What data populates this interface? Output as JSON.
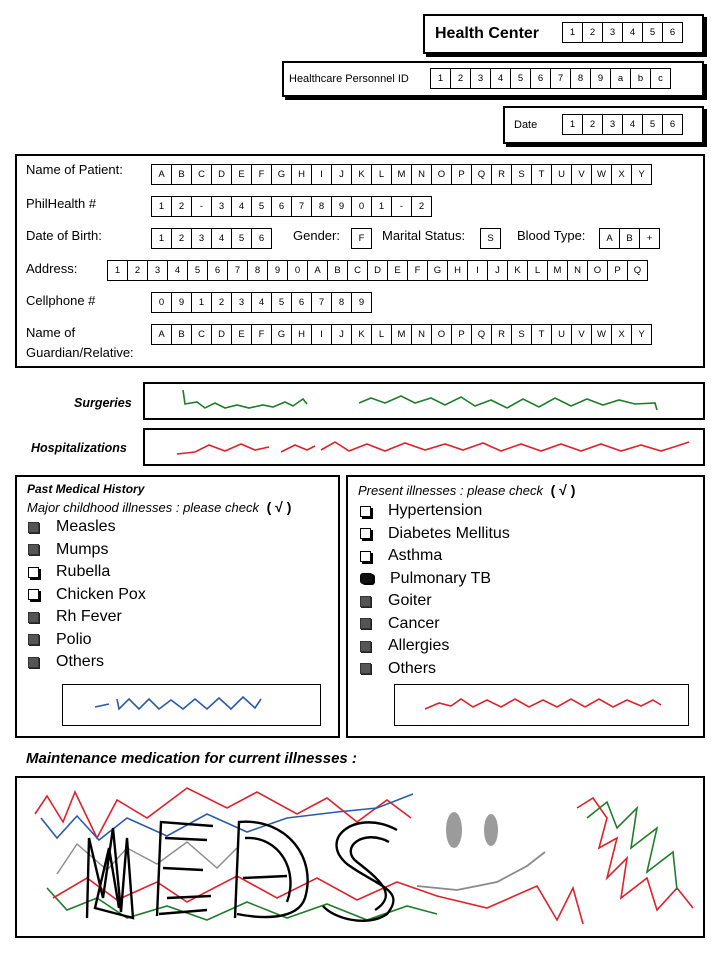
{
  "header": {
    "health_center": {
      "label": "Health Center",
      "cells": [
        "1",
        "2",
        "3",
        "4",
        "5",
        "6"
      ]
    },
    "personnel_id": {
      "label": "Healthcare Personnel ID",
      "cells": [
        "1",
        "2",
        "3",
        "4",
        "5",
        "6",
        "7",
        "8",
        "9",
        "a",
        "b",
        "c"
      ]
    },
    "date": {
      "label": "Date",
      "cells": [
        "1",
        "2",
        "3",
        "4",
        "5",
        "6"
      ]
    }
  },
  "patient": {
    "name": {
      "label": "Name of Patient:",
      "cells": [
        "A",
        "B",
        "C",
        "D",
        "E",
        "F",
        "G",
        "H",
        "I",
        "J",
        "K",
        "L",
        "M",
        "N",
        "O",
        "P",
        "Q",
        "R",
        "S",
        "T",
        "U",
        "V",
        "W",
        "X",
        "Y"
      ]
    },
    "philhealth": {
      "label": "PhilHealth  #",
      "cells": [
        "1",
        "2",
        "-",
        "3",
        "4",
        "5",
        "6",
        "7",
        "8",
        "9",
        "0",
        "1",
        "-",
        "2"
      ]
    },
    "dob": {
      "label": "Date of Birth:",
      "cells": [
        "1",
        "2",
        "3",
        "4",
        "5",
        "6"
      ]
    },
    "gender": {
      "label": "Gender:",
      "cells": [
        "F"
      ]
    },
    "marital": {
      "label": "Marital Status:",
      "cells": [
        "S"
      ]
    },
    "blood": {
      "label": "Blood Type:",
      "cells": [
        "A",
        "B",
        "+"
      ]
    },
    "address": {
      "label": "Address:",
      "cells": [
        "1",
        "2",
        "3",
        "4",
        "5",
        "6",
        "7",
        "8",
        "9",
        "0",
        "A",
        "B",
        "C",
        "D",
        "E",
        "F",
        "G",
        "H",
        "I",
        "J",
        "K",
        "L",
        "M",
        "N",
        "O",
        "P",
        "Q"
      ]
    },
    "cellphone": {
      "label": "Cellphone #",
      "cells": [
        "0",
        "9",
        "1",
        "2",
        "3",
        "4",
        "5",
        "6",
        "7",
        "8",
        "9"
      ]
    },
    "guardian": {
      "label_line1": "Name of",
      "label_line2": "Guardian/Relative:",
      "cells": [
        "A",
        "B",
        "C",
        "D",
        "E",
        "F",
        "G",
        "H",
        "I",
        "J",
        "K",
        "L",
        "M",
        "N",
        "O",
        "P",
        "Q",
        "R",
        "S",
        "T",
        "U",
        "V",
        "W",
        "X",
        "Y"
      ]
    }
  },
  "surgeries": {
    "label": "Surgeries"
  },
  "hospitalizations": {
    "label": "Hospitalizations"
  },
  "past_history": {
    "title": "Past Medical History",
    "subtitle": "Major childhood illnesses : please check",
    "check_glyph": "( √ )",
    "items": [
      {
        "label": "Measles",
        "state": "filled"
      },
      {
        "label": "Mumps",
        "state": "filled"
      },
      {
        "label": "Rubella",
        "state": "empty"
      },
      {
        "label": "Chicken Pox",
        "state": "empty"
      },
      {
        "label": "Rh Fever",
        "state": "filled"
      },
      {
        "label": "Polio",
        "state": "filled"
      },
      {
        "label": "Others",
        "state": "filled"
      }
    ]
  },
  "present_illnesses": {
    "subtitle": "Present illnesses : please check",
    "check_glyph": "( √ )",
    "items": [
      {
        "label": "Hypertension",
        "state": "empty"
      },
      {
        "label": "Diabetes Mellitus",
        "state": "empty"
      },
      {
        "label": "Asthma",
        "state": "empty"
      },
      {
        "label": "Pulmonary TB",
        "state": "scribble"
      },
      {
        "label": "Goiter",
        "state": "filled"
      },
      {
        "label": "Cancer",
        "state": "filled"
      },
      {
        "label": "Allergies",
        "state": "filled"
      },
      {
        "label": "Others",
        "state": "filled"
      }
    ]
  },
  "maintenance": {
    "title": "Maintenance medication for current illnesses :"
  },
  "ink_colors": {
    "green": "#1e7d2a",
    "red": "#e0202a",
    "blue": "#2a5aa8",
    "black": "#000000",
    "gray": "#8a8a8a"
  }
}
